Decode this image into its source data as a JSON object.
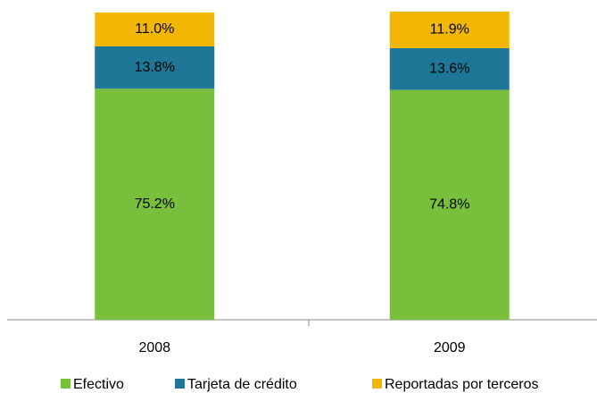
{
  "chart_data": {
    "type": "stacked_bar",
    "categories": [
      "2008",
      "2009"
    ],
    "series": [
      {
        "name": "Efectivo",
        "color": "#78bf3c",
        "values": [
          75.2,
          74.8
        ],
        "value_labels": [
          "75.2%",
          "74.8%"
        ]
      },
      {
        "name": "Tarjeta de crédito",
        "color": "#1e7797",
        "values": [
          13.8,
          13.6
        ],
        "value_labels": [
          "13.8%",
          "13.6%"
        ]
      },
      {
        "name": "Reportadas por terceros",
        "color": "#f2b705",
        "values": [
          11.0,
          11.9
        ],
        "value_labels": [
          "11.0%",
          "11.9%"
        ]
      }
    ],
    "legend": "bottom"
  }
}
